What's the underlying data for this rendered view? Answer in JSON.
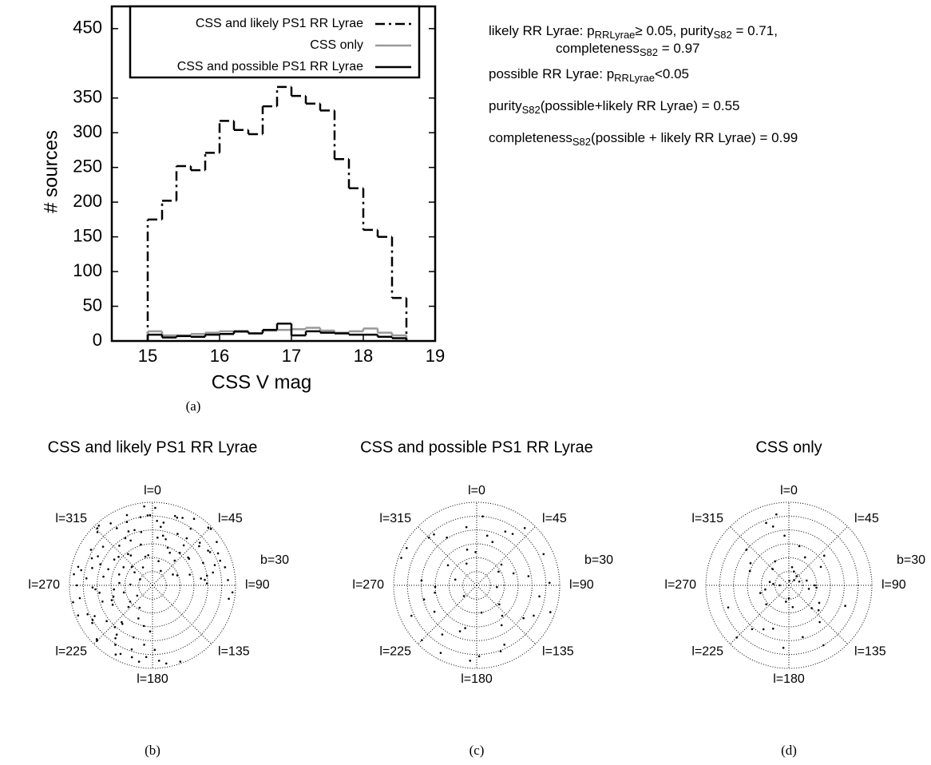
{
  "chart_data": [
    {
      "type": "histogram",
      "xlabel": "CSS V mag",
      "ylabel": "# sources",
      "caption": "(a)",
      "bins": [
        15,
        15.2,
        15.4,
        15.6,
        15.8,
        16,
        16.2,
        16.4,
        16.6,
        16.8,
        17,
        17.2,
        17.4,
        17.6,
        17.8,
        18,
        18.2,
        18.4,
        18.6
      ],
      "series": [
        {
          "name": "CSS and likely PS1 RR Lyrae",
          "color": "#000000",
          "dash": "dash-dot",
          "values": [
            175,
            202,
            252,
            246,
            271,
            317,
            304,
            298,
            338,
            366,
            353,
            342,
            332,
            262,
            220,
            160,
            150,
            62
          ]
        },
        {
          "name": "CSS only",
          "color": "#999999",
          "dash": "solid",
          "values": [
            14,
            8,
            8,
            10,
            12,
            14,
            13,
            11,
            15,
            16,
            17,
            19,
            15,
            12,
            14,
            18,
            12,
            8
          ]
        },
        {
          "name": "CSS and possible PS1 RR Lyrae",
          "color": "#000000",
          "dash": "solid",
          "values": [
            9,
            5,
            7,
            6,
            9,
            10,
            14,
            11,
            16,
            25,
            8,
            14,
            12,
            11,
            9,
            9,
            6,
            4
          ]
        }
      ],
      "xlim": [
        14.5,
        19
      ],
      "xticks": [
        15,
        16,
        17,
        18,
        19
      ],
      "ylim": [
        0,
        482
      ],
      "yticks": [
        0,
        50,
        100,
        150,
        200,
        250,
        300,
        350,
        450
      ],
      "legend": "top-right",
      "annotations": [
        [
          "likely RR Lyrae: p",
          "RRLyrae",
          "≥  0.05, purity",
          "S82",
          " = 0.71,"
        ],
        [
          "completeness",
          "S82",
          " = 0.97"
        ],
        [
          "possible RR Lyrae: p",
          "RRLyrae",
          "<0.05"
        ],
        [
          "purity",
          "S82",
          "(possible+likely RR Lyrae) = 0.55"
        ],
        [
          "completeness",
          "S82",
          "(possible + likely RR Lyrae) = 0.99"
        ]
      ]
    },
    {
      "type": "polar_scatter",
      "title": "CSS and likely PS1 RR Lyrae",
      "caption": "(b)",
      "color": "#000000",
      "blim": [
        90,
        0
      ],
      "bgrid": [
        0,
        15,
        30,
        45,
        60,
        75
      ],
      "blabels": [
        {
          "value": 30,
          "label": "b=30"
        }
      ],
      "lticks": [
        {
          "value": 0,
          "label": "l=0"
        },
        {
          "value": 45,
          "label": "l=45"
        },
        {
          "value": 90,
          "label": "l=90"
        },
        {
          "value": 135,
          "label": "l=135"
        },
        {
          "value": 180,
          "label": "l=180"
        },
        {
          "value": 225,
          "label": "l=225"
        },
        {
          "value": 270,
          "label": "l=270"
        },
        {
          "value": 315,
          "label": "l=315"
        }
      ],
      "l": [
        185,
        192,
        200,
        205,
        210,
        215,
        220,
        225,
        228,
        232,
        236,
        240,
        244,
        248,
        252,
        256,
        260,
        264,
        268,
        272,
        276,
        280,
        284,
        288,
        292,
        296,
        300,
        304,
        308,
        312,
        316,
        320,
        324,
        328,
        332,
        336,
        340,
        344,
        348,
        352,
        356,
        2,
        6,
        10,
        14,
        18,
        22,
        26,
        30,
        34,
        38,
        42,
        46,
        50,
        54,
        58,
        62,
        66,
        70,
        74,
        78,
        82,
        86,
        188,
        196,
        203,
        212,
        218,
        226,
        234,
        242,
        250,
        258,
        266,
        274,
        282,
        290,
        298,
        306,
        314,
        322,
        330,
        338,
        346,
        354,
        4,
        12,
        20,
        28,
        36,
        44,
        52,
        60,
        68,
        76,
        84,
        183,
        198,
        208,
        222,
        238,
        254,
        270,
        286,
        302,
        318,
        334,
        350,
        8,
        24,
        40,
        56,
        72,
        88,
        190,
        216,
        246,
        262,
        278,
        294,
        310,
        326,
        342,
        358,
        16,
        32,
        48,
        64,
        80,
        95,
        100,
        170,
        175,
        178,
        160
      ],
      "b": [
        12,
        45,
        30,
        8,
        62,
        20,
        38,
        5,
        55,
        27,
        70,
        15,
        42,
        3,
        33,
        58,
        10,
        48,
        25,
        66,
        18,
        36,
        7,
        52,
        29,
        75,
        13,
        40,
        22,
        60,
        4,
        34,
        50,
        17,
        68,
        26,
        9,
        44,
        31,
        57,
        14,
        6,
        38,
        21,
        63,
        11,
        46,
        28,
        72,
        16,
        35,
        54,
        2,
        24,
        41,
        19,
        65,
        30,
        12,
        48,
        23,
        37,
        8,
        25,
        9,
        51,
        14,
        37,
        6,
        60,
        19,
        43,
        2,
        28,
        54,
        11,
        39,
        23,
        66,
        7,
        47,
        31,
        16,
        58,
        4,
        20,
        35,
        12,
        50,
        27,
        3,
        41,
        18,
        61,
        9,
        33,
        40,
        17,
        5,
        29,
        13,
        46,
        8,
        22,
        53,
        3,
        36,
        15,
        26,
        10,
        44,
        6,
        19,
        31,
        6,
        24,
        13,
        32,
        4,
        18,
        42,
        9,
        27,
        14,
        38,
        5,
        21,
        11,
        30,
        3,
        6,
        4,
        8,
        20,
        2
      ]
    },
    {
      "type": "polar_scatter",
      "title": "CSS and possible PS1 RR Lyrae",
      "caption": "(c)",
      "color": "#000000",
      "blim": [
        90,
        0
      ],
      "bgrid": [
        0,
        15,
        30,
        45,
        60,
        75
      ],
      "blabels": [
        {
          "value": 30,
          "label": "b=30"
        }
      ],
      "lticks": [
        {
          "value": 0,
          "label": "l=0"
        },
        {
          "value": 45,
          "label": "l=45"
        },
        {
          "value": 90,
          "label": "l=90"
        },
        {
          "value": 135,
          "label": "l=135"
        },
        {
          "value": 180,
          "label": "l=180"
        },
        {
          "value": 225,
          "label": "l=225"
        },
        {
          "value": 270,
          "label": "l=270"
        },
        {
          "value": 315,
          "label": "l=315"
        }
      ],
      "l": [
        5,
        20,
        35,
        50,
        65,
        80,
        95,
        110,
        125,
        140,
        155,
        170,
        185,
        200,
        215,
        230,
        245,
        260,
        275,
        290,
        305,
        320,
        335,
        350,
        12,
        40,
        72,
        100,
        130,
        160,
        195,
        225,
        255,
        285,
        315,
        345,
        28,
        88,
        148,
        208,
        268,
        328,
        58,
        118,
        178,
        238,
        298,
        358
      ],
      "b": [
        15,
        40,
        22,
        55,
        10,
        33,
        68,
        5,
        28,
        47,
        19,
        60,
        8,
        37,
        25,
        72,
        12,
        44,
        30,
        3,
        52,
        18,
        64,
        26,
        35,
        9,
        48,
        21,
        58,
        14,
        42,
        6,
        31,
        66,
        17,
        50,
        24,
        11,
        39,
        7,
        45,
        29,
        62,
        20,
        13,
        36,
        4,
        54
      ]
    },
    {
      "type": "polar_scatter",
      "title": "CSS only",
      "caption": "(d)",
      "color": "#000000",
      "blim": [
        90,
        0
      ],
      "bgrid": [
        0,
        15,
        30,
        45,
        60,
        75
      ],
      "blabels": [
        {
          "value": 30,
          "label": "b=30"
        }
      ],
      "lticks": [
        {
          "value": 0,
          "label": "l=0"
        },
        {
          "value": 45,
          "label": "l=45"
        },
        {
          "value": 90,
          "label": "l=90"
        },
        {
          "value": 135,
          "label": "l=135"
        },
        {
          "value": 180,
          "label": "l=180"
        },
        {
          "value": 225,
          "label": "l=225"
        },
        {
          "value": 270,
          "label": "l=270"
        },
        {
          "value": 315,
          "label": "l=315"
        }
      ],
      "l": [
        10,
        30,
        50,
        70,
        90,
        110,
        130,
        150,
        170,
        190,
        210,
        230,
        250,
        270,
        290,
        310,
        330,
        350,
        20,
        60,
        100,
        140,
        180,
        220,
        260,
        300,
        340,
        45,
        135,
        225,
        315,
        15,
        75,
        165,
        255,
        345,
        40,
        120,
        200,
        280,
        5,
        95,
        185,
        275,
        355
      ],
      "b": [
        70,
        55,
        40,
        78,
        62,
        25,
        48,
        15,
        66,
        72,
        35,
        58,
        20,
        80,
        45,
        30,
        60,
        12,
        74,
        50,
        68,
        38,
        76,
        28,
        64,
        42,
        18,
        82,
        55,
        10,
        65,
        46,
        70,
        32,
        58,
        24,
        77,
        52,
        40,
        69,
        85,
        60,
        22,
        73,
        36
      ]
    }
  ]
}
